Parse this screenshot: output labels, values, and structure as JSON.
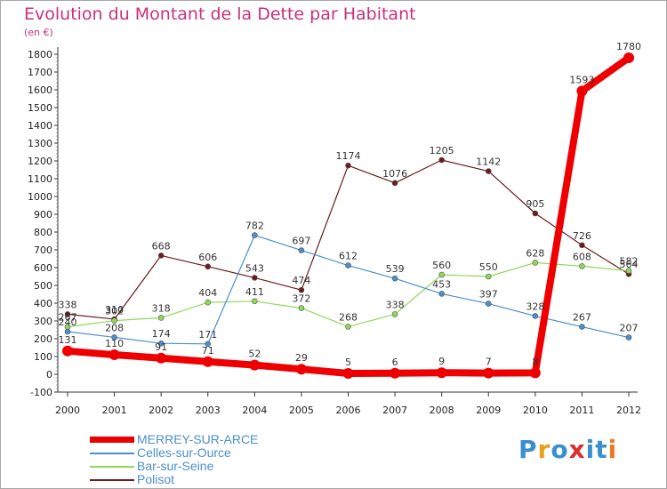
{
  "title": "Evolution du Montant de la Dette par Habitant",
  "unit_label": "(en €)",
  "logo": {
    "letters": [
      "P",
      "r",
      "o",
      "x",
      "i",
      "t",
      "i"
    ],
    "colors": [
      "#3a8fd0",
      "#e8a020",
      "#3a8fd0",
      "#d93030",
      "#3a8fd0",
      "#3a8fd0",
      "#f07820"
    ]
  },
  "chart_data": {
    "type": "line",
    "x": [
      "2000",
      "2001",
      "2002",
      "2003",
      "2004",
      "2005",
      "2006",
      "2007",
      "2008",
      "2009",
      "2010",
      "2011",
      "2012"
    ],
    "ylim": [
      -100,
      1800
    ],
    "yticks": [
      -100,
      0,
      100,
      200,
      300,
      400,
      500,
      600,
      700,
      800,
      900,
      1000,
      1100,
      1200,
      1300,
      1400,
      1500,
      1600,
      1700,
      1800
    ],
    "grid": false,
    "legend_position": "bottom-left",
    "series": [
      {
        "name": "MERREY-SUR-ARCE",
        "color": "#ee0000",
        "width": 8,
        "marker": 6,
        "values": [
          131,
          110,
          91,
          71,
          52,
          29,
          5,
          6,
          9,
          7,
          8,
          1593,
          1780
        ],
        "labels": [
          "131",
          "110",
          "91",
          "71",
          "52",
          "29",
          "5",
          "6",
          "9",
          "7",
          "8",
          "1593",
          "1780"
        ]
      },
      {
        "name": "Celles-sur-Ource",
        "color": "#4b8fcc",
        "width": 1.2,
        "marker": 3,
        "values": [
          240,
          208,
          174,
          171,
          782,
          697,
          612,
          539,
          453,
          397,
          328,
          267,
          207
        ],
        "labels": [
          "240",
          "208",
          "174",
          "171",
          "782",
          "697",
          "612",
          "539",
          "453",
          "397",
          "328",
          "267",
          "207"
        ]
      },
      {
        "name": "Bar-sur-Seine",
        "color": "#8fd85a",
        "width": 1.2,
        "marker": 3,
        "values": [
          267,
          302,
          318,
          404,
          411,
          372,
          268,
          338,
          560,
          550,
          628,
          608,
          582
        ],
        "labels": [
          "267",
          "302",
          "318",
          "404",
          "411",
          "372",
          "268",
          "338",
          "560",
          "550",
          "628",
          "608",
          "582"
        ]
      },
      {
        "name": "Polisot",
        "color": "#6b1c1c",
        "width": 1.2,
        "marker": 3,
        "values": [
          338,
          310,
          668,
          606,
          543,
          474,
          1174,
          1076,
          1205,
          1142,
          905,
          726,
          564
        ],
        "labels": [
          "338",
          "310",
          "668",
          "606",
          "543",
          "474",
          "1174",
          "1076",
          "1205",
          "1142",
          "905",
          "726",
          "564"
        ]
      }
    ]
  }
}
